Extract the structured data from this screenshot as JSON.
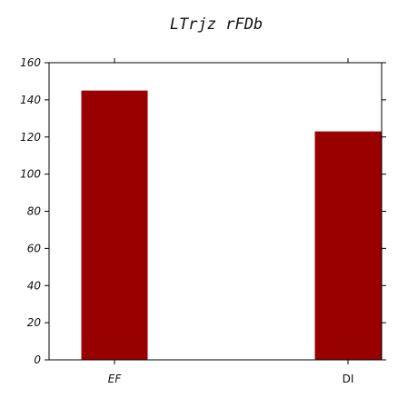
{
  "chart_data": {
    "type": "bar",
    "title": "LTrjz rFDb",
    "xlabel": "",
    "ylabel": "",
    "categories": [
      "EF",
      "DI"
    ],
    "values": [
      145,
      123
    ],
    "ylim": [
      0,
      160
    ],
    "yticks": [
      0,
      20,
      40,
      60,
      80,
      100,
      120,
      140,
      160
    ],
    "bar_color": "#990000",
    "grid": false,
    "legend": "none"
  }
}
